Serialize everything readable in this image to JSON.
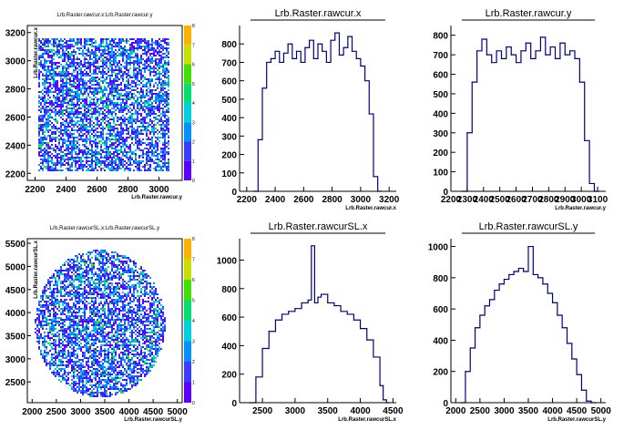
{
  "chart_data": [
    {
      "id": "p1",
      "type": "heatmap",
      "title": "Lrb.Raster.rawcur.x:Lrb.Raster.rawcur.y",
      "xlabel": "Lrb.Raster.rawcur.y",
      "ylabel": "Lrb.Raster.rawcur.x",
      "x_ticks": [
        2200,
        2400,
        2600,
        2800,
        3000
      ],
      "y_ticks": [
        2200,
        2400,
        2600,
        2800,
        3000,
        3200
      ],
      "y_tick_labels": [
        "2200",
        "2400",
        "2600",
        "2800",
        "3000",
        "3200"
      ],
      "palette_ticks": [
        0,
        1,
        2,
        3,
        4,
        5,
        6,
        7,
        8
      ],
      "shape": "square"
    },
    {
      "id": "p2",
      "type": "line",
      "title": "Lrb.Raster.rawcur.x",
      "xlabel": "Lrb.Raster.rawcur.x",
      "x_ticks": [
        2200,
        2400,
        2600,
        2800,
        3000,
        3200
      ],
      "y_ticks": [
        0,
        100,
        200,
        300,
        400,
        500,
        600,
        700,
        800
      ],
      "ylim": [
        0,
        900
      ],
      "x": [
        2250,
        2280,
        2310,
        2340,
        2370,
        2400,
        2430,
        2460,
        2490,
        2520,
        2550,
        2580,
        2610,
        2640,
        2670,
        2700,
        2730,
        2760,
        2790,
        2820,
        2850,
        2880,
        2910,
        2940,
        2970,
        3000,
        3030,
        3060,
        3090,
        3120
      ],
      "values": [
        0,
        280,
        560,
        700,
        720,
        760,
        700,
        750,
        800,
        720,
        760,
        700,
        780,
        820,
        720,
        800,
        760,
        700,
        820,
        860,
        740,
        780,
        840,
        760,
        720,
        680,
        600,
        420,
        80,
        0
      ]
    },
    {
      "id": "p3",
      "type": "line",
      "title": "Lrb.Raster.rawcur.y",
      "xlabel": "Lrb.Raster.rawcur.y",
      "x_ticks": [
        2200,
        2300,
        2400,
        2500,
        2600,
        2700,
        2800,
        2900,
        3000,
        3100
      ],
      "y_ticks": [
        0,
        100,
        200,
        300,
        400,
        500,
        600,
        700,
        800
      ],
      "ylim": [
        0,
        850
      ],
      "x": [
        2270,
        2300,
        2330,
        2360,
        2390,
        2420,
        2450,
        2480,
        2510,
        2540,
        2570,
        2600,
        2630,
        2660,
        2690,
        2720,
        2750,
        2780,
        2810,
        2840,
        2870,
        2900,
        2930,
        2960,
        2990,
        3020,
        3050,
        3080
      ],
      "values": [
        0,
        300,
        560,
        720,
        780,
        700,
        660,
        720,
        680,
        740,
        700,
        660,
        720,
        760,
        680,
        720,
        790,
        700,
        740,
        680,
        760,
        700,
        720,
        680,
        560,
        260,
        40,
        0
      ]
    },
    {
      "id": "p4",
      "type": "heatmap",
      "title": "Lrb.Raster.rawcurSL.x:Lrb.Raster.rawcurSL.y",
      "xlabel": "Lrb.Raster.rawcurSL.y",
      "ylabel": "Lrb.Raster.rawcurSL.x",
      "x_ticks": [
        2000,
        2500,
        3000,
        3500,
        4000,
        4500,
        5000
      ],
      "y_ticks": [
        2500,
        3000,
        3500,
        4000,
        4500,
        5000,
        5500
      ],
      "y_tick_labels": [
        "2500",
        "3000",
        "3500",
        "4000",
        "4500",
        "5000",
        "5500"
      ],
      "palette_ticks": [
        0,
        1,
        2,
        3,
        4,
        5,
        6,
        7,
        8
      ],
      "shape": "circle"
    },
    {
      "id": "p5",
      "type": "line",
      "title": "Lrb.Raster.rawcurSL.x",
      "xlabel": "Lrb.Raster.rawcurSL.x",
      "x_ticks": [
        2500,
        3000,
        3500,
        4000,
        4500
      ],
      "y_ticks": [
        0,
        200,
        400,
        600,
        800,
        1000
      ],
      "ylim": [
        0,
        1150
      ],
      "x": [
        2300,
        2400,
        2500,
        2600,
        2700,
        2800,
        2900,
        3000,
        3100,
        3200,
        3250,
        3300,
        3350,
        3400,
        3500,
        3600,
        3700,
        3800,
        3900,
        4000,
        4100,
        4200,
        4300,
        4350,
        4400
      ],
      "values": [
        0,
        180,
        380,
        500,
        580,
        620,
        640,
        660,
        700,
        720,
        1100,
        700,
        740,
        760,
        700,
        680,
        640,
        620,
        580,
        520,
        440,
        320,
        120,
        20,
        0
      ]
    },
    {
      "id": "p6",
      "type": "line",
      "title": "Lrb.Raster.rawcurSL.y",
      "xlabel": "Lrb.Raster.rawcurSL.y",
      "x_ticks": [
        2000,
        2500,
        3000,
        3500,
        4000,
        4500,
        5000
      ],
      "y_ticks": [
        0,
        200,
        400,
        600,
        800,
        1000
      ],
      "ylim": [
        0,
        1050
      ],
      "x": [
        2100,
        2200,
        2300,
        2400,
        2500,
        2600,
        2700,
        2800,
        2900,
        3000,
        3100,
        3200,
        3300,
        3400,
        3500,
        3600,
        3700,
        3800,
        3900,
        4000,
        4100,
        4200,
        4300,
        4400,
        4500,
        4600,
        4700,
        4800
      ],
      "values": [
        0,
        200,
        350,
        480,
        560,
        620,
        660,
        720,
        760,
        790,
        820,
        840,
        860,
        840,
        1000,
        820,
        800,
        760,
        700,
        640,
        560,
        480,
        380,
        280,
        180,
        80,
        10,
        0
      ]
    }
  ]
}
